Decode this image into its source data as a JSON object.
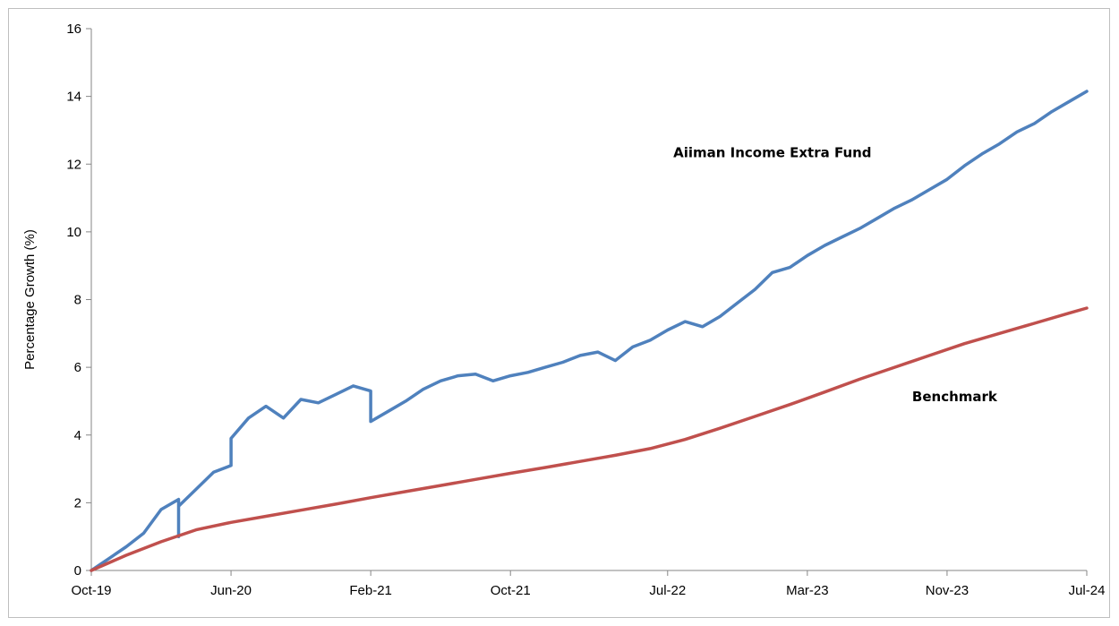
{
  "chart_data": {
    "type": "line",
    "title": "",
    "xlabel": "",
    "ylabel": "Percentage Growth (%)",
    "ylim": [
      0,
      16
    ],
    "yticks": [
      "0",
      "2",
      "4",
      "6",
      "8",
      "10",
      "12",
      "14",
      "16"
    ],
    "xlim": [
      "2019-10",
      "2024-07"
    ],
    "xtick_labels": [
      "Oct-19",
      "Jun-20",
      "Feb-21",
      "Oct-21",
      "Jul-22",
      "Mar-23",
      "Nov-23",
      "Jul-24"
    ],
    "xtick_dates": [
      "2019-10",
      "2020-06",
      "2021-02",
      "2021-10",
      "2022-07",
      "2023-03",
      "2023-11",
      "2024-07"
    ],
    "grid": false,
    "legend": "none",
    "series": [
      {
        "name": "Aiiman Income Extra Fund",
        "color": "#4f81bd",
        "x": [
          "2019-10",
          "2019-11",
          "2019-12",
          "2020-01",
          "2020-02",
          "2020-03",
          "2020-03",
          "2020-03",
          "2020-04",
          "2020-05",
          "2020-06",
          "2020-06",
          "2020-07",
          "2020-08",
          "2020-09",
          "2020-10",
          "2020-11",
          "2020-12",
          "2021-01",
          "2021-02",
          "2021-02",
          "2021-03",
          "2021-04",
          "2021-05",
          "2021-06",
          "2021-07",
          "2021-08",
          "2021-09",
          "2021-10",
          "2021-11",
          "2021-12",
          "2022-01",
          "2022-02",
          "2022-03",
          "2022-04",
          "2022-05",
          "2022-06",
          "2022-07",
          "2022-08",
          "2022-09",
          "2022-10",
          "2022-11",
          "2022-12",
          "2023-01",
          "2023-02",
          "2023-03",
          "2023-04",
          "2023-05",
          "2023-06",
          "2023-07",
          "2023-08",
          "2023-09",
          "2023-10",
          "2023-11",
          "2023-12",
          "2024-01",
          "2024-02",
          "2024-03",
          "2024-04",
          "2024-05",
          "2024-06",
          "2024-07"
        ],
        "y": [
          0.0,
          0.35,
          0.7,
          1.1,
          1.8,
          2.1,
          1.0,
          1.9,
          2.4,
          2.9,
          3.1,
          3.9,
          4.5,
          4.85,
          4.5,
          5.05,
          4.95,
          5.2,
          5.45,
          5.3,
          4.4,
          4.7,
          5.0,
          5.35,
          5.6,
          5.75,
          5.8,
          5.6,
          5.75,
          5.85,
          6.0,
          6.15,
          6.35,
          6.45,
          6.2,
          6.6,
          6.8,
          7.1,
          7.35,
          7.2,
          7.5,
          7.9,
          8.3,
          8.8,
          8.95,
          9.3,
          9.6,
          9.85,
          10.1,
          10.4,
          10.7,
          10.95,
          11.25,
          11.55,
          11.95,
          12.3,
          12.6,
          12.95,
          13.2,
          13.55,
          13.85,
          14.15
        ]
      },
      {
        "name": "Benchmark",
        "color": "#c0504d",
        "x": [
          "2019-10",
          "2019-12",
          "2020-02",
          "2020-04",
          "2020-06",
          "2020-08",
          "2020-10",
          "2020-12",
          "2021-02",
          "2021-04",
          "2021-06",
          "2021-08",
          "2021-10",
          "2021-12",
          "2022-02",
          "2022-04",
          "2022-06",
          "2022-08",
          "2022-10",
          "2022-12",
          "2023-02",
          "2023-04",
          "2023-06",
          "2023-08",
          "2023-10",
          "2023-12",
          "2024-02",
          "2024-04",
          "2024-06",
          "2024-07"
        ],
        "y": [
          0.0,
          0.45,
          0.85,
          1.2,
          1.42,
          1.6,
          1.78,
          1.96,
          2.15,
          2.33,
          2.51,
          2.69,
          2.87,
          3.04,
          3.22,
          3.4,
          3.6,
          3.87,
          4.2,
          4.55,
          4.9,
          5.27,
          5.65,
          6.0,
          6.35,
          6.7,
          7.0,
          7.3,
          7.6,
          7.75
        ]
      }
    ],
    "annotations": [
      {
        "text": "Aiiman Income Extra Fund",
        "x": "2023-01",
        "y": 12.2
      },
      {
        "text": "Benchmark",
        "x": "2023-09",
        "y": 5.0
      }
    ]
  }
}
